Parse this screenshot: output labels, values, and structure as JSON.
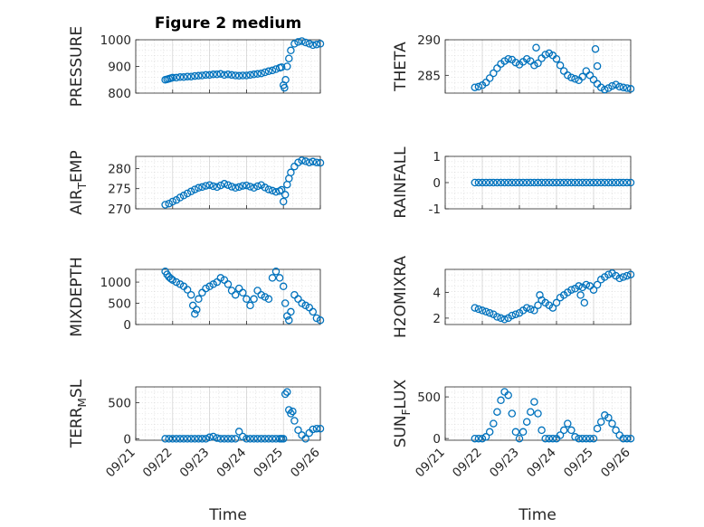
{
  "figure_title": "Figure 2 medium",
  "colors": {
    "marker": "#0072BD",
    "axis": "#262626",
    "grid": "#d9d9d9"
  },
  "x_ticks": [
    "09/21",
    "09/22",
    "09/23",
    "09/24",
    "09/25",
    "09/26"
  ],
  "x_label": "Time",
  "chart_data": [
    {
      "type": "scatter",
      "id": "pressure",
      "ylabel": "PRESSURE",
      "title": "Figure 2 medium",
      "xlim": [
        0,
        5
      ],
      "ylim": [
        800,
        1000
      ],
      "yticks": [
        800,
        900,
        1000
      ],
      "x": [
        0.8,
        0.85,
        0.9,
        0.95,
        1.0,
        1.1,
        1.2,
        1.3,
        1.4,
        1.5,
        1.6,
        1.7,
        1.8,
        1.9,
        2.0,
        2.1,
        2.2,
        2.3,
        2.4,
        2.5,
        2.6,
        2.7,
        2.8,
        2.9,
        3.0,
        3.1,
        3.2,
        3.3,
        3.4,
        3.5,
        3.6,
        3.7,
        3.8,
        3.9,
        3.95,
        4.0,
        4.03,
        4.06,
        4.1,
        4.15,
        4.2,
        4.3,
        4.4,
        4.5,
        4.6,
        4.7,
        4.8,
        4.9,
        5.0
      ],
      "y": [
        850,
        852,
        854,
        856,
        858,
        858,
        860,
        860,
        862,
        862,
        864,
        865,
        866,
        868,
        868,
        870,
        870,
        872,
        868,
        870,
        868,
        866,
        865,
        866,
        866,
        868,
        870,
        872,
        874,
        878,
        882,
        885,
        890,
        895,
        897,
        830,
        820,
        850,
        900,
        930,
        960,
        985,
        992,
        995,
        990,
        985,
        980,
        982,
        985
      ]
    },
    {
      "type": "scatter",
      "id": "theta",
      "ylabel": "THETA",
      "xlim": [
        0,
        5
      ],
      "ylim": [
        282.5,
        290
      ],
      "yticks": [
        285,
        290
      ],
      "x": [
        0.8,
        0.9,
        1.0,
        1.1,
        1.2,
        1.3,
        1.4,
        1.5,
        1.6,
        1.7,
        1.8,
        1.9,
        2.0,
        2.1,
        2.2,
        2.3,
        2.4,
        2.5,
        2.6,
        2.7,
        2.8,
        2.9,
        3.0,
        3.1,
        3.2,
        3.3,
        3.4,
        3.5,
        3.6,
        3.7,
        3.8,
        3.9,
        4.0,
        4.1,
        4.2,
        4.3,
        4.4,
        4.5,
        4.6,
        4.7,
        4.8,
        4.9,
        5.0,
        2.45,
        4.05,
        4.1
      ],
      "y": [
        283.3,
        283.4,
        283.6,
        284.0,
        284.6,
        285.3,
        286.0,
        286.6,
        287.0,
        287.3,
        287.2,
        286.8,
        286.5,
        286.9,
        287.3,
        287.0,
        286.4,
        286.7,
        287.4,
        287.9,
        288.1,
        287.8,
        287.3,
        286.4,
        285.6,
        285.0,
        284.7,
        284.5,
        284.3,
        284.8,
        285.6,
        285.0,
        284.4,
        283.8,
        283.3,
        283.0,
        283.2,
        283.5,
        283.7,
        283.4,
        283.3,
        283.2,
        283.1,
        288.9,
        288.7,
        286.3
      ]
    },
    {
      "type": "scatter",
      "id": "air_temp",
      "ylabel": "AIR_TEMP",
      "xlim": [
        0,
        5
      ],
      "ylim": [
        270,
        283
      ],
      "yticks": [
        270,
        275,
        280
      ],
      "x": [
        0.8,
        0.9,
        1.0,
        1.1,
        1.2,
        1.3,
        1.4,
        1.5,
        1.6,
        1.7,
        1.8,
        1.9,
        2.0,
        2.1,
        2.2,
        2.3,
        2.4,
        2.5,
        2.6,
        2.7,
        2.8,
        2.9,
        3.0,
        3.1,
        3.2,
        3.3,
        3.4,
        3.5,
        3.6,
        3.7,
        3.8,
        3.9,
        3.95,
        4.0,
        4.05,
        4.1,
        4.15,
        4.2,
        4.3,
        4.4,
        4.5,
        4.6,
        4.7,
        4.8,
        4.9,
        5.0
      ],
      "y": [
        271.0,
        271.3,
        271.8,
        272.2,
        272.8,
        273.3,
        273.8,
        274.3,
        274.8,
        275.2,
        275.4,
        275.7,
        275.9,
        275.6,
        275.4,
        275.8,
        276.2,
        275.9,
        275.5,
        275.2,
        275.4,
        275.7,
        275.8,
        275.5,
        275.2,
        275.6,
        275.9,
        275.3,
        274.8,
        274.5,
        274.2,
        274.4,
        274.7,
        271.8,
        273.5,
        276.0,
        277.5,
        279.0,
        280.5,
        281.5,
        282.0,
        281.8,
        281.5,
        281.7,
        281.5,
        281.4
      ]
    },
    {
      "type": "scatter",
      "id": "rainfall",
      "ylabel": "RAINFALL",
      "xlim": [
        0,
        5
      ],
      "ylim": [
        -1,
        1
      ],
      "yticks": [
        -1,
        0,
        1
      ],
      "x": [
        0.8,
        0.9,
        1.0,
        1.1,
        1.2,
        1.3,
        1.4,
        1.5,
        1.6,
        1.7,
        1.8,
        1.9,
        2.0,
        2.1,
        2.2,
        2.3,
        2.4,
        2.5,
        2.6,
        2.7,
        2.8,
        2.9,
        3.0,
        3.1,
        3.2,
        3.3,
        3.4,
        3.5,
        3.6,
        3.7,
        3.8,
        3.9,
        4.0,
        4.1,
        4.2,
        4.3,
        4.4,
        4.5,
        4.6,
        4.7,
        4.8,
        4.9,
        5.0
      ],
      "y": [
        0,
        0,
        0,
        0,
        0,
        0,
        0,
        0,
        0,
        0,
        0,
        0,
        0,
        0,
        0,
        0,
        0,
        0,
        0,
        0,
        0,
        0,
        0,
        0,
        0,
        0,
        0,
        0,
        0,
        0,
        0,
        0,
        0,
        0,
        0,
        0,
        0,
        0,
        0,
        0,
        0,
        0,
        0
      ]
    },
    {
      "type": "scatter",
      "id": "mixdepth",
      "ylabel": "MIXDEPTH",
      "xlim": [
        0,
        5
      ],
      "ylim": [
        0,
        1300
      ],
      "yticks": [
        0,
        500,
        1000
      ],
      "x": [
        0.8,
        0.85,
        0.9,
        0.95,
        1.0,
        1.1,
        1.2,
        1.3,
        1.4,
        1.5,
        1.55,
        1.6,
        1.65,
        1.7,
        1.8,
        1.9,
        2.0,
        2.1,
        2.2,
        2.3,
        2.4,
        2.5,
        2.6,
        2.7,
        2.8,
        2.9,
        3.0,
        3.1,
        3.2,
        3.3,
        3.4,
        3.5,
        3.6,
        3.7,
        3.8,
        3.9,
        4.0,
        4.05,
        4.1,
        4.15,
        4.2,
        4.3,
        4.4,
        4.5,
        4.6,
        4.7,
        4.8,
        4.9,
        5.0
      ],
      "y": [
        1250,
        1180,
        1120,
        1080,
        1050,
        1000,
        950,
        900,
        820,
        700,
        450,
        250,
        350,
        600,
        750,
        850,
        900,
        950,
        1000,
        1100,
        1050,
        950,
        800,
        700,
        850,
        750,
        600,
        450,
        600,
        800,
        700,
        650,
        600,
        1100,
        1250,
        1100,
        900,
        500,
        200,
        100,
        300,
        700,
        600,
        500,
        450,
        400,
        300,
        150,
        100
      ]
    },
    {
      "type": "scatter",
      "id": "h2omixra",
      "ylabel": "H2OMIXRA",
      "xlim": [
        0,
        5
      ],
      "ylim": [
        1.5,
        5.8
      ],
      "yticks": [
        2,
        4
      ],
      "x": [
        0.8,
        0.9,
        1.0,
        1.1,
        1.2,
        1.3,
        1.4,
        1.5,
        1.6,
        1.7,
        1.8,
        1.9,
        2.0,
        2.1,
        2.2,
        2.3,
        2.4,
        2.5,
        2.6,
        2.7,
        2.8,
        2.9,
        3.0,
        3.1,
        3.2,
        3.3,
        3.4,
        3.5,
        3.6,
        3.7,
        3.8,
        3.9,
        4.0,
        4.1,
        4.2,
        4.3,
        4.4,
        4.5,
        4.6,
        4.7,
        4.8,
        4.9,
        5.0,
        2.55,
        3.65,
        3.75
      ],
      "y": [
        2.8,
        2.7,
        2.6,
        2.5,
        2.4,
        2.3,
        2.1,
        2.0,
        1.9,
        2.0,
        2.2,
        2.3,
        2.4,
        2.6,
        2.8,
        2.7,
        2.6,
        3.0,
        3.4,
        3.2,
        3.0,
        2.8,
        3.2,
        3.6,
        3.8,
        4.0,
        4.2,
        4.3,
        4.5,
        4.4,
        4.6,
        4.5,
        4.2,
        4.6,
        5.0,
        5.2,
        5.4,
        5.5,
        5.3,
        5.1,
        5.2,
        5.3,
        5.4,
        3.8,
        3.8,
        3.2
      ]
    },
    {
      "type": "scatter",
      "id": "terr_msl",
      "ylabel": "TERR_MSL",
      "xlim": [
        0,
        5
      ],
      "ylim": [
        -20,
        720
      ],
      "yticks": [
        0,
        500
      ],
      "x": [
        0.8,
        0.9,
        1.0,
        1.1,
        1.2,
        1.3,
        1.4,
        1.5,
        1.6,
        1.7,
        1.8,
        1.9,
        2.0,
        2.1,
        2.2,
        2.3,
        2.4,
        2.5,
        2.6,
        2.7,
        2.8,
        2.9,
        3.0,
        3.1,
        3.2,
        3.3,
        3.4,
        3.5,
        3.6,
        3.7,
        3.8,
        3.9,
        3.95,
        4.0,
        4.05,
        4.1,
        4.15,
        4.2,
        4.25,
        4.3,
        4.4,
        4.5,
        4.6,
        4.7,
        4.8,
        4.9,
        5.0
      ],
      "y": [
        0,
        0,
        0,
        0,
        0,
        0,
        0,
        0,
        0,
        0,
        0,
        0,
        20,
        30,
        10,
        0,
        0,
        0,
        0,
        0,
        100,
        30,
        0,
        0,
        0,
        0,
        0,
        0,
        0,
        0,
        0,
        0,
        0,
        0,
        620,
        650,
        400,
        350,
        380,
        250,
        120,
        50,
        0,
        80,
        130,
        140,
        140
      ]
    },
    {
      "type": "scatter",
      "id": "sun_flux",
      "ylabel": "SUN_FLUX",
      "xlim": [
        0,
        5
      ],
      "ylim": [
        -20,
        620
      ],
      "yticks": [
        0,
        500
      ],
      "x": [
        0.8,
        0.9,
        1.0,
        1.1,
        1.2,
        1.3,
        1.4,
        1.5,
        1.6,
        1.7,
        1.8,
        1.9,
        2.0,
        2.1,
        2.2,
        2.3,
        2.4,
        2.5,
        2.6,
        2.7,
        2.8,
        2.9,
        3.0,
        3.1,
        3.2,
        3.3,
        3.4,
        3.5,
        3.6,
        3.7,
        3.8,
        3.9,
        4.0,
        4.1,
        4.2,
        4.3,
        4.4,
        4.5,
        4.6,
        4.7,
        4.8,
        4.9,
        5.0
      ],
      "y": [
        0,
        0,
        0,
        20,
        80,
        180,
        320,
        460,
        560,
        520,
        300,
        80,
        0,
        80,
        200,
        320,
        440,
        300,
        100,
        0,
        0,
        0,
        0,
        40,
        100,
        180,
        100,
        20,
        0,
        0,
        0,
        0,
        0,
        120,
        200,
        280,
        250,
        180,
        100,
        40,
        0,
        0,
        0
      ]
    }
  ]
}
